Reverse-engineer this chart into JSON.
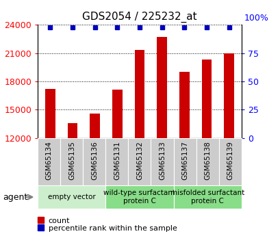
{
  "title": "GDS2054 / 225232_at",
  "samples": [
    "GSM65134",
    "GSM65135",
    "GSM65136",
    "GSM65131",
    "GSM65132",
    "GSM65133",
    "GSM65137",
    "GSM65138",
    "GSM65139"
  ],
  "counts": [
    17200,
    13600,
    14600,
    17100,
    21300,
    22700,
    19000,
    20300,
    21000
  ],
  "y_min": 12000,
  "y_max": 24000,
  "y_ticks_left": [
    12000,
    15000,
    18000,
    21000,
    24000
  ],
  "y_ticks_right": [
    0,
    25,
    50,
    75
  ],
  "bar_color": "#cc0000",
  "dot_color": "#0000bb",
  "groups": [
    {
      "label": "empty vector",
      "start": 0,
      "end": 3,
      "color": "#cceecc"
    },
    {
      "label": "wild-type surfactant\nprotein C",
      "start": 3,
      "end": 6,
      "color": "#88dd88"
    },
    {
      "label": "misfolded surfactant\nprotein C",
      "start": 6,
      "end": 9,
      "color": "#88dd88"
    }
  ],
  "agent_label": "agent",
  "legend_count_label": "count",
  "legend_pct_label": "percentile rank within the sample",
  "tick_bg_color": "#cccccc",
  "title_fontsize": 11,
  "tick_fontsize": 9,
  "label_fontsize": 7.5,
  "group_fontsize": 7.5,
  "legend_fontsize": 8
}
